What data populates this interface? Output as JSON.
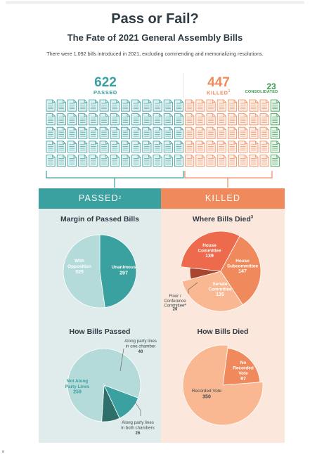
{
  "header": {
    "title": "Pass or Fail?",
    "subtitle": "The Fate of 2021 General Assembly Bills",
    "note": "There were 1,092 bills introduced in 2021, excluding commending and memorializing resolutions."
  },
  "summary": {
    "passed_count": "622",
    "passed_label": "PASSED",
    "killed_count": "447",
    "killed_label": "KILLED",
    "killed_sup": "1",
    "consolidated_count": "23",
    "consolidated_label": "CONSOLIDATED"
  },
  "colors": {
    "teal": "#3aa1a0",
    "teal_dark": "#2e6f6c",
    "teal_light": "#b4dada",
    "orange": "#f08a5d",
    "coral": "#ee6a4d",
    "brick": "#a8452f",
    "peach": "#f9b892",
    "green": "#3c9a52"
  },
  "panels": {
    "passed_band": "PASSED",
    "passed_band_sup": "2",
    "killed_band": "KILLED",
    "margin_title": "Margin of Passed Bills",
    "where_title": "Where Bills Died",
    "where_title_sup": "3",
    "how_passed_title": "How Bills Passed",
    "how_died_title": "How Bills Died"
  },
  "chart_data": [
    {
      "type": "pie",
      "title": "Margin of Passed Bills",
      "slices": [
        {
          "label": "Unanimous",
          "value": 297,
          "color": "#3aa1a0"
        },
        {
          "label": "With Opposition",
          "value": 325,
          "color": "#b4dada"
        }
      ]
    },
    {
      "type": "pie",
      "title": "Where Bills Died",
      "slices": [
        {
          "label": "House Committee",
          "value": 139,
          "color": "#ee6a4d"
        },
        {
          "label": "House Subcommittee",
          "value": 147,
          "color": "#f08a5d"
        },
        {
          "label": "Senate Committee",
          "value": 135,
          "color": "#f9b892"
        },
        {
          "label": "Floor / Conference Committee",
          "label_sup": "4",
          "value": 26,
          "color": "#a8452f"
        }
      ]
    },
    {
      "type": "pie",
      "title": "How Bills Passed",
      "slices": [
        {
          "label": "Along party lines in one chamber",
          "value": 40,
          "color": "#3aa1a0"
        },
        {
          "label": "Along party lines in both chambers",
          "value": 26,
          "color": "#2e6f6c"
        },
        {
          "label": "Not Along Party Lines",
          "value": 259,
          "color": "#b4dada"
        }
      ]
    },
    {
      "type": "pie",
      "title": "How Bills Died",
      "slices": [
        {
          "label": "No Recorded Vote",
          "value": 97,
          "color": "#f08a5d"
        },
        {
          "label": "Recorded Vote",
          "value": 350,
          "color": "#f9b892"
        }
      ]
    }
  ]
}
